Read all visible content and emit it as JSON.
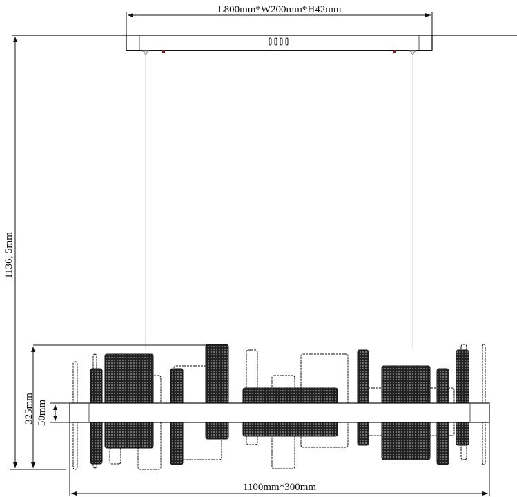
{
  "dimensions": {
    "canopy": "L800mm*W200mm*H42mm",
    "total_height": "1136, 5mm",
    "body_height": "325mm",
    "bar_height": "50mm",
    "body_size": "1100mm*300mm"
  },
  "colors": {
    "line": "#111111",
    "panel_dark": "#2a2a2a",
    "wire": "#d0d0d0",
    "screw": "#8b1a1a"
  }
}
